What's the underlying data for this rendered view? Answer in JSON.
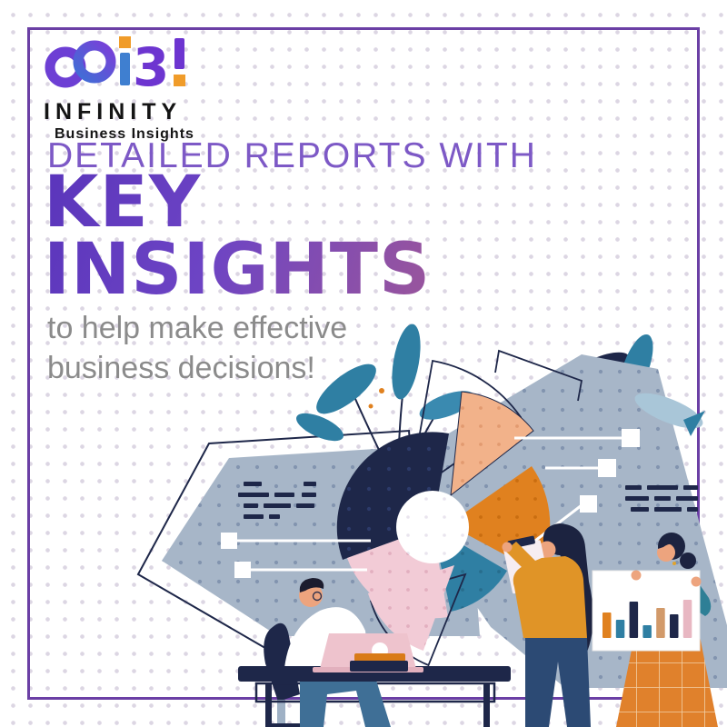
{
  "brand": {
    "name": "INFINITY",
    "tagline": "Business Insights",
    "mark_glyph": "3"
  },
  "headline": {
    "eyebrow": "DETAILED REPORTS WITH",
    "title_line1": "KEY",
    "title_line2": "INSIGHTS"
  },
  "subheadline": {
    "line1": "to help make effective",
    "line2": "business decisions!"
  },
  "colors": {
    "frame_purple": "#6b3fa5",
    "eyebrow_purple": "#7d59c6",
    "title_gradient_from": "#5a35bb",
    "title_gradient_to": "#96549f",
    "subtext_gray": "#8b8b8b",
    "navy": "#1e2749",
    "panel_blue": "#a7b6c8",
    "teal": "#2f7fa3",
    "peach": "#f2b28a",
    "orange": "#e0811f",
    "pink": "#f2cbd6",
    "mustard": "#e09427",
    "skin": "#eda47e",
    "logo_orange": "#f09c2a",
    "logo_purple": "#6d35d0",
    "logo_blue": "#3f7fd0"
  },
  "illustration": {
    "poster_chart": {
      "type": "bar",
      "values": [
        28,
        20,
        40,
        14,
        33,
        26,
        42
      ],
      "colors": [
        "#e0811f",
        "#2f7fa3",
        "#1e2749",
        "#2f7fa3",
        "#d29a6a",
        "#1e2749",
        "#e8b7c2"
      ]
    }
  }
}
